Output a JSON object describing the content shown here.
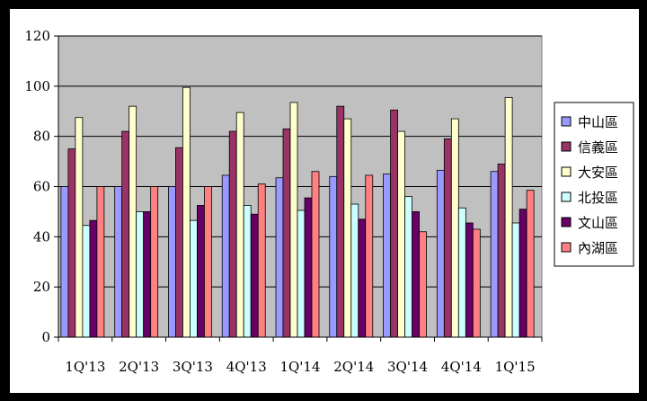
{
  "chart_data": {
    "type": "bar",
    "categories": [
      "1Q'13",
      "2Q'13",
      "3Q'13",
      "4Q'13",
      "1Q'14",
      "2Q'14",
      "3Q'14",
      "4Q'14",
      "1Q'15"
    ],
    "ylim": [
      0,
      120
    ],
    "yticks": [
      0,
      20,
      40,
      60,
      80,
      100,
      120
    ],
    "grid": true,
    "legend_position": "right",
    "plot_background": "#c0c0c0",
    "series": [
      {
        "name": "中山區",
        "color": "#9999ff",
        "values": [
          60,
          60,
          60,
          64.5,
          63.5,
          64,
          65,
          66.5,
          66
        ]
      },
      {
        "name": "信義區",
        "color": "#993366",
        "values": [
          75,
          82,
          75.5,
          82,
          83,
          92,
          90.5,
          79,
          69
        ]
      },
      {
        "name": "大安區",
        "color": "#ffffcc",
        "values": [
          87.5,
          92,
          99.5,
          89.5,
          93.5,
          87,
          82,
          87,
          95.5
        ]
      },
      {
        "name": "北投區",
        "color": "#ccffff",
        "values": [
          44.5,
          50,
          46.5,
          52.5,
          50.5,
          53,
          56,
          51.5,
          45.5
        ]
      },
      {
        "name": "文山區",
        "color": "#660066",
        "values": [
          46.5,
          50,
          52.5,
          49,
          55.5,
          47,
          50,
          45.5,
          51
        ]
      },
      {
        "name": "內湖區",
        "color": "#ff8080",
        "values": [
          60,
          60,
          60,
          61,
          66,
          64.5,
          42,
          43,
          58.5
        ]
      }
    ]
  }
}
